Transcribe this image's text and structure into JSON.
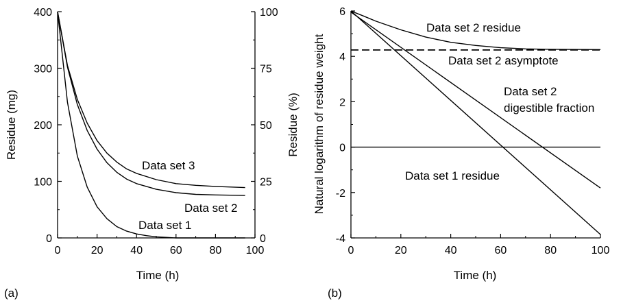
{
  "chart_data": [
    {
      "panel": "(a)",
      "type": "line",
      "xlabel": "Time (h)",
      "ylabel": "Residue (mg)",
      "y2label": "Residue (%)",
      "xlim": [
        0,
        100
      ],
      "ylim": [
        0,
        400
      ],
      "y2lim": [
        0,
        100
      ],
      "xticks": [
        0,
        20,
        40,
        60,
        80,
        100
      ],
      "yticks": [
        0,
        100,
        200,
        300,
        400
      ],
      "y2ticks": [
        0,
        25,
        50,
        75,
        100
      ],
      "grid": false,
      "series": [
        {
          "name": "Data set 1",
          "x": [
            0,
            5,
            10,
            15,
            20,
            25,
            30,
            35,
            40,
            45,
            50,
            55,
            60,
            70,
            80,
            95
          ],
          "y": [
            400,
            240,
            145,
            90,
            55,
            34,
            20,
            12,
            7,
            4,
            2,
            1,
            0,
            0,
            0,
            0
          ]
        },
        {
          "name": "Data set 2",
          "x": [
            0,
            5,
            10,
            15,
            20,
            25,
            30,
            35,
            40,
            50,
            60,
            70,
            80,
            95
          ],
          "y": [
            400,
            302,
            236,
            190,
            157,
            133,
            116,
            104,
            96,
            86,
            80,
            77,
            76,
            75
          ]
        },
        {
          "name": "Data set 3",
          "x": [
            0,
            5,
            10,
            15,
            20,
            25,
            30,
            35,
            40,
            50,
            60,
            70,
            80,
            95
          ],
          "y": [
            400,
            305,
            245,
            203,
            172,
            150,
            134,
            122,
            114,
            103,
            96,
            93,
            91,
            89
          ]
        }
      ]
    },
    {
      "panel": "(b)",
      "type": "line",
      "xlabel": "Time (h)",
      "ylabel": "Natural logarithm of residue weight",
      "xlim": [
        0,
        100
      ],
      "ylim": [
        -4,
        6
      ],
      "xticks": [
        0,
        20,
        40,
        60,
        80,
        100
      ],
      "yticks": [
        -4,
        -2,
        0,
        2,
        4,
        6
      ],
      "grid": false,
      "series": [
        {
          "name": "Data set 2 residue",
          "x": [
            0,
            5,
            10,
            20,
            30,
            40,
            50,
            60,
            70,
            80,
            100
          ],
          "y": [
            6.0,
            5.78,
            5.55,
            5.17,
            4.85,
            4.62,
            4.48,
            4.38,
            4.33,
            4.31,
            4.3
          ]
        },
        {
          "name": "Data set 2 asymptote",
          "style": "dashed",
          "x": [
            0,
            100
          ],
          "y": [
            4.28,
            4.28
          ]
        },
        {
          "name": "Data set 2 digestible fraction",
          "x": [
            0,
            100
          ],
          "y": [
            5.95,
            -1.8
          ]
        },
        {
          "name": "Data set 1 residue",
          "x": [
            0,
            100
          ],
          "y": [
            6.0,
            -3.85
          ]
        },
        {
          "name": "",
          "x": [
            0,
            100
          ],
          "y": [
            0,
            0
          ]
        }
      ]
    }
  ],
  "labels": {
    "a_set3": "Data set 3",
    "a_set2": "Data set 2",
    "a_set1": "Data set 1",
    "b_residue": "Data set 2 residue",
    "b_asymptote": "Data set 2 asymptote",
    "b_digest_1": "Data set 2",
    "b_digest_2": "digestible fraction",
    "b_set1": "Data set 1 residue",
    "panel_a": "(a)",
    "panel_b": "(b)"
  }
}
